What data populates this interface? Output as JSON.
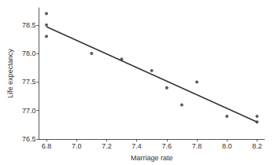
{
  "chart_data": {
    "type": "scatter",
    "x_label": "Marriage rate",
    "y_label": "Life expectancy",
    "x": [
      6.8,
      6.8,
      6.8,
      7.1,
      7.3,
      7.5,
      7.6,
      7.7,
      7.8,
      8.0,
      8.2,
      8.2
    ],
    "values": [
      78.7,
      78.5,
      78.3,
      78.0,
      77.9,
      77.7,
      77.4,
      77.1,
      77.5,
      76.9,
      76.9,
      76.8
    ],
    "color": "#333333",
    "marker": "circle",
    "series": [
      {
        "type": "line",
        "x": [
          6.8,
          8.2
        ],
        "values": [
          78.47,
          76.8
        ],
        "color": "#333333",
        "line_style": "solid"
      }
    ],
    "xlim": [
      6.75,
      8.25
    ],
    "xticks": [
      6.8,
      {
        "value": 7,
        "label": "7.0"
      },
      7.2,
      7.4,
      7.6,
      7.8,
      {
        "value": 8,
        "label": "8.0"
      },
      8.2
    ],
    "ylim": [
      76.5,
      78.8
    ],
    "yticks": [
      76.5,
      {
        "value": 77,
        "label": "77.0"
      },
      77.5,
      {
        "value": 78,
        "label": "78.0"
      },
      78.5
    ],
    "grid": false
  }
}
